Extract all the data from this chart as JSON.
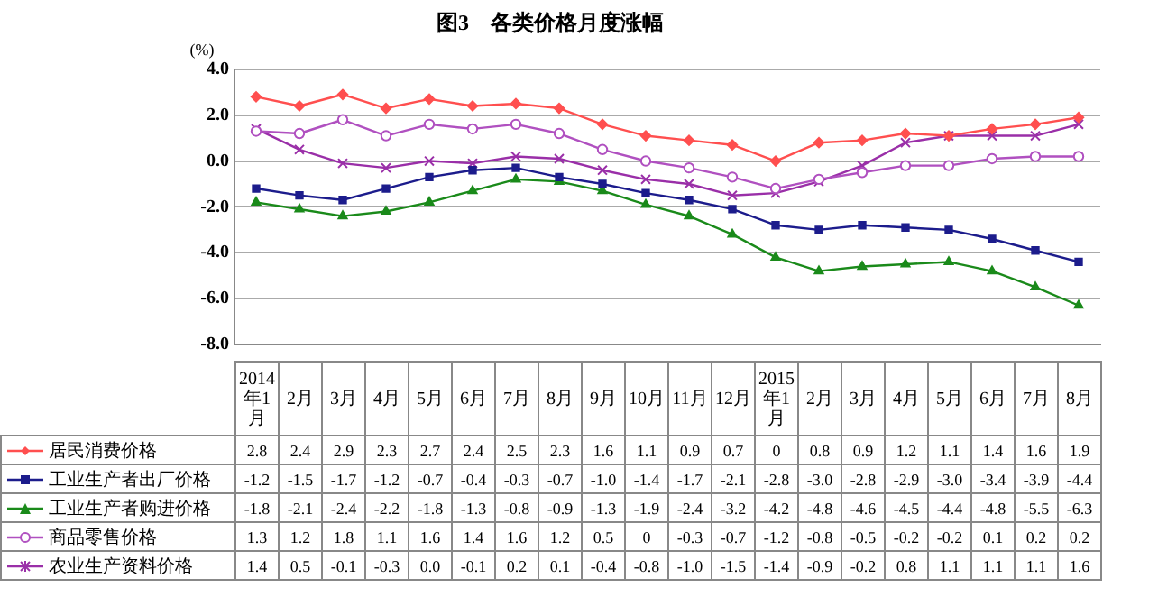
{
  "chart_data": {
    "type": "line",
    "title": "图3　各类价格月度涨幅",
    "ylabel": "(%)",
    "categories": [
      "2014年1月",
      "2月",
      "3月",
      "4月",
      "5月",
      "6月",
      "7月",
      "8月",
      "9月",
      "10月",
      "11月",
      "12月",
      "2015年1月",
      "2月",
      "3月",
      "4月",
      "5月",
      "6月",
      "7月",
      "8月"
    ],
    "series": [
      {
        "name": "居民消费价格",
        "color": "#ff4f4f",
        "marker": "diamond",
        "values": [
          2.8,
          2.4,
          2.9,
          2.3,
          2.7,
          2.4,
          2.5,
          2.3,
          1.6,
          1.1,
          0.9,
          0.7,
          0,
          0.8,
          0.9,
          1.2,
          1.1,
          1.4,
          1.6,
          1.9
        ],
        "value_labels": [
          "2.8",
          "2.4",
          "2.9",
          "2.3",
          "2.7",
          "2.4",
          "2.5",
          "2.3",
          "1.6",
          "1.1",
          "0.9",
          "0.7",
          "0",
          "0.8",
          "0.9",
          "1.2",
          "1.1",
          "1.4",
          "1.6",
          "1.9"
        ]
      },
      {
        "name": "工业生产者出厂价格",
        "color": "#1c1c8c",
        "marker": "square",
        "values": [
          -1.2,
          -1.5,
          -1.7,
          -1.2,
          -0.7,
          -0.4,
          -0.3,
          -0.7,
          -1.0,
          -1.4,
          -1.7,
          -2.1,
          -2.8,
          -3.0,
          -2.8,
          -2.9,
          -3.0,
          -3.4,
          -3.9,
          -4.4
        ],
        "value_labels": [
          "-1.2",
          "-1.5",
          "-1.7",
          "-1.2",
          "-0.7",
          "-0.4",
          "-0.3",
          "-0.7",
          "-1.0",
          "-1.4",
          "-1.7",
          "-2.1",
          "-2.8",
          "-3.0",
          "-2.8",
          "-2.9",
          "-3.0",
          "-3.4",
          "-3.9",
          "-4.4"
        ]
      },
      {
        "name": "工业生产者购进价格",
        "color": "#1a8a1a",
        "marker": "triangle",
        "values": [
          -1.8,
          -2.1,
          -2.4,
          -2.2,
          -1.8,
          -1.3,
          -0.8,
          -0.9,
          -1.3,
          -1.9,
          -2.4,
          -3.2,
          -4.2,
          -4.8,
          -4.6,
          -4.5,
          -4.4,
          -4.8,
          -5.5,
          -6.3
        ],
        "value_labels": [
          "-1.8",
          "-2.1",
          "-2.4",
          "-2.2",
          "-1.8",
          "-1.3",
          "-0.8",
          "-0.9",
          "-1.3",
          "-1.9",
          "-2.4",
          "-3.2",
          "-4.2",
          "-4.8",
          "-4.6",
          "-4.5",
          "-4.4",
          "-4.8",
          "-5.5",
          "-6.3"
        ]
      },
      {
        "name": "商品零售价格",
        "color": "#b050c0",
        "marker": "circle",
        "values": [
          1.3,
          1.2,
          1.8,
          1.1,
          1.6,
          1.4,
          1.6,
          1.2,
          0.5,
          0,
          -0.3,
          -0.7,
          -1.2,
          -0.8,
          -0.5,
          -0.2,
          -0.2,
          0.1,
          0.2,
          0.2
        ],
        "value_labels": [
          "1.3",
          "1.2",
          "1.8",
          "1.1",
          "1.6",
          "1.4",
          "1.6",
          "1.2",
          "0.5",
          "0",
          "-0.3",
          "-0.7",
          "-1.2",
          "-0.8",
          "-0.5",
          "-0.2",
          "-0.2",
          "0.1",
          "0.2",
          "0.2"
        ]
      },
      {
        "name": "农业生产资料价格",
        "color": "#9a2fa8",
        "marker": "cross",
        "values": [
          1.4,
          0.5,
          -0.1,
          -0.3,
          0.0,
          -0.1,
          0.2,
          0.1,
          -0.4,
          -0.8,
          -1.0,
          -1.5,
          -1.4,
          -0.9,
          -0.2,
          0.8,
          1.1,
          1.1,
          1.1,
          1.6
        ],
        "value_labels": [
          "1.4",
          "0.5",
          "-0.1",
          "-0.3",
          "0.0",
          "-0.1",
          "0.2",
          "0.1",
          "-0.4",
          "-0.8",
          "-1.0",
          "-1.5",
          "-1.4",
          "-0.9",
          "-0.2",
          "0.8",
          "1.1",
          "1.1",
          "1.1",
          "1.6"
        ]
      }
    ],
    "ylim": [
      -8,
      4
    ],
    "yticks": [
      {
        "value": 4,
        "label": "4.0"
      },
      {
        "value": 2,
        "label": "2.0"
      },
      {
        "value": 0,
        "label": "0.0"
      },
      {
        "value": -2,
        "label": "-2.0"
      },
      {
        "value": -4,
        "label": "-4.0"
      },
      {
        "value": -6,
        "label": "-6.0"
      },
      {
        "value": -8,
        "label": "-8.0"
      }
    ],
    "grid": "y",
    "legend": "bottom"
  }
}
